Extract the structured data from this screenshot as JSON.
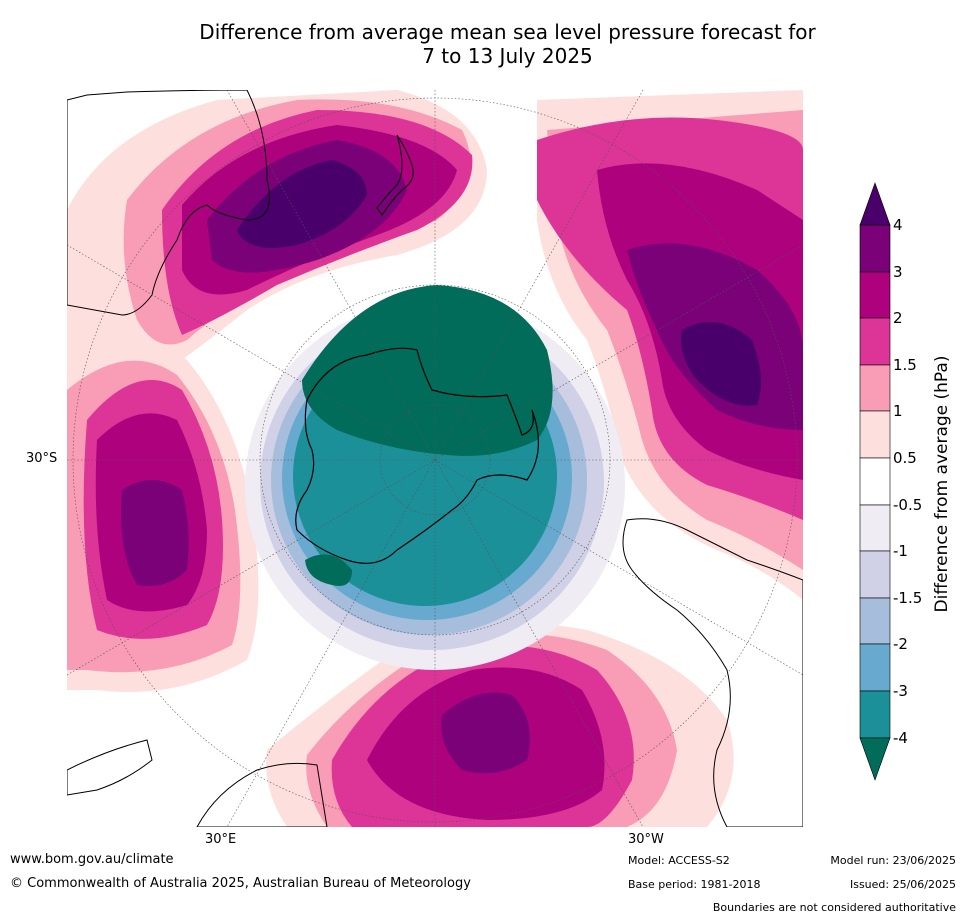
{
  "title": {
    "line1": "Difference from average mean sea level pressure forecast for",
    "line2": "7 to 13 July 2025"
  },
  "map": {
    "projection": "south-polar-stereographic",
    "lat_labels": [
      "30°S"
    ],
    "lon_labels": [
      "30°E",
      "30°W"
    ]
  },
  "legend": {
    "title": "Difference from average (hPa)",
    "levels": [
      "4",
      "3",
      "2",
      "1.5",
      "1",
      "0.5",
      "-0.5",
      "-1",
      "-1.5",
      "-2",
      "-3",
      "-4"
    ],
    "colors": {
      "above_4": "#4a006a",
      "3_to_4": "#7a0177",
      "2_to_3": "#ae017e",
      "1.5_to_2": "#dd3497",
      "1_to_1.5": "#f99cb5",
      "0.5_to_1": "#fde0dd",
      "-0.5_to_0.5": "#ffffff",
      "-1_to_-0.5": "#f0ecf3",
      "-1.5_to_-1": "#d0d1e6",
      "-2_to_-1.5": "#a6bddb",
      "-3_to_-2": "#67a9cf",
      "-4_to_-3": "#1c9099",
      "below_-4": "#016c59"
    }
  },
  "footer": {
    "website": "www.bom.gov.au/climate",
    "copyright": "© Commonwealth of Australia 2025, Australian Bureau of Meteorology",
    "model": "Model: ACCESS-S2",
    "base_period": "Base period: 1981-2018",
    "model_run": "Model run: 23/06/2025",
    "issued": "Issued: 25/06/2025",
    "disclaimer": "Boundaries are not considered authoritative"
  }
}
